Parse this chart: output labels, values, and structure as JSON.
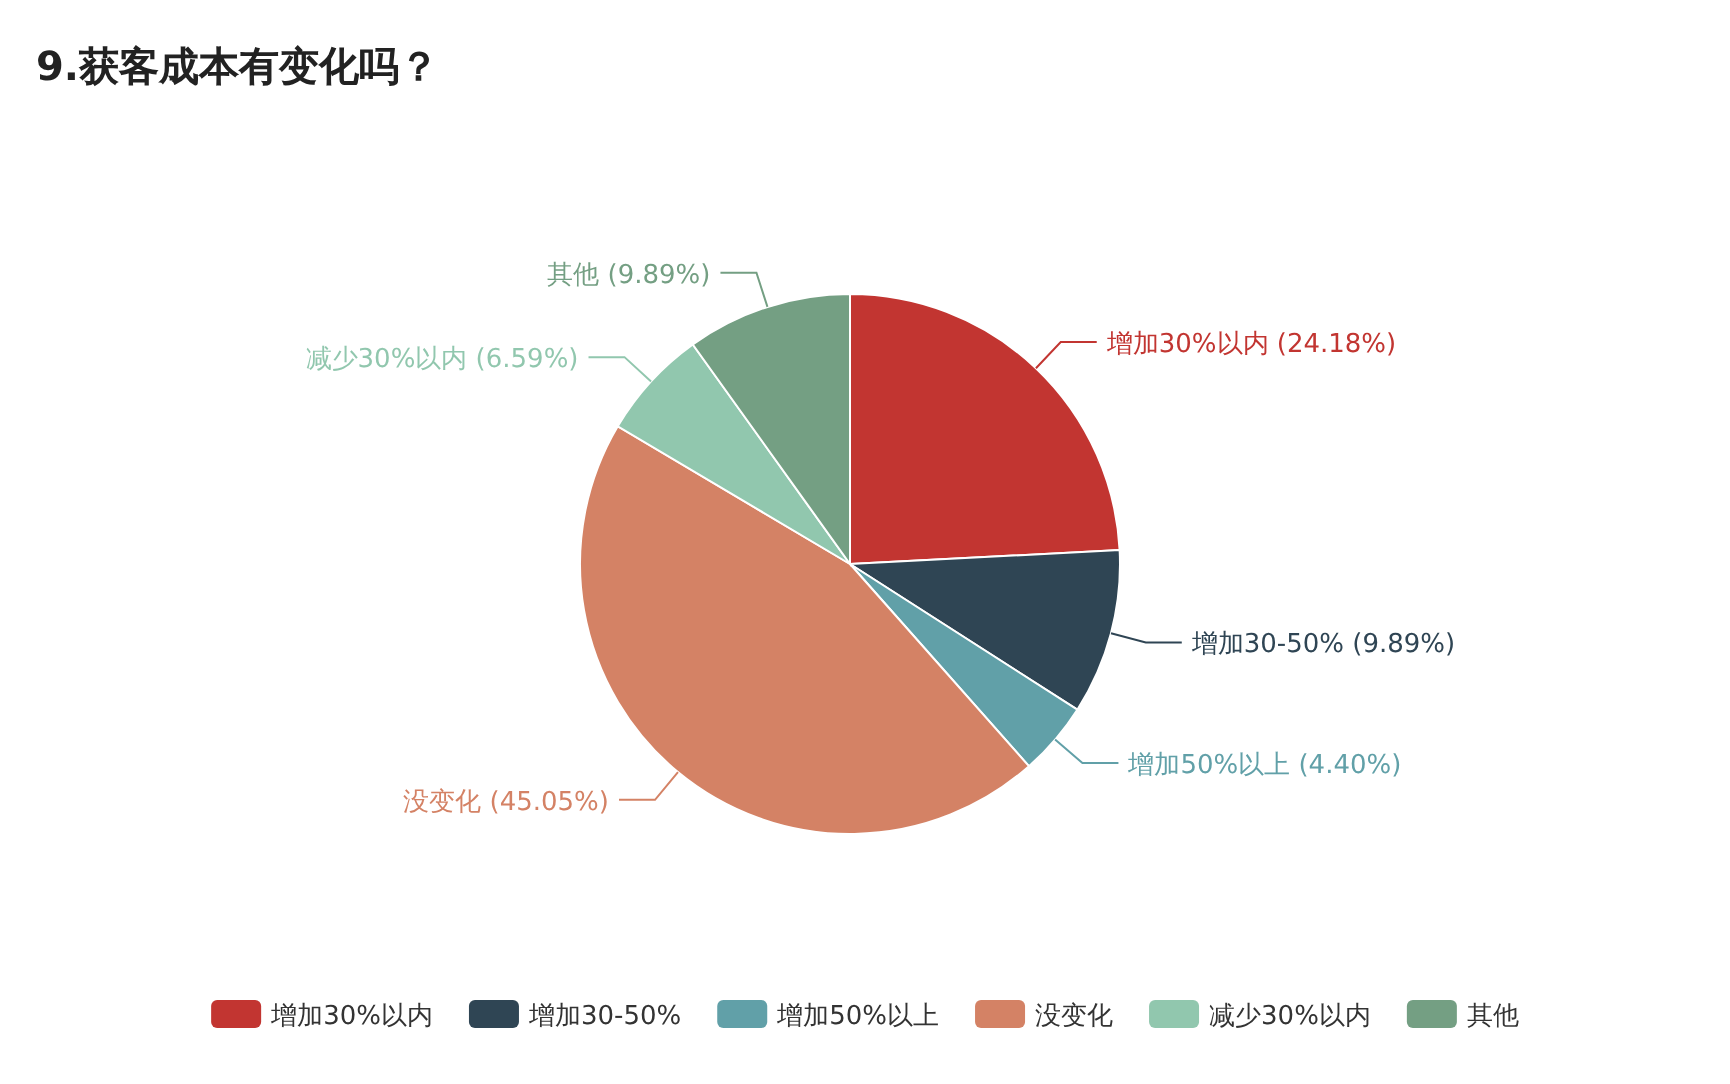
{
  "chart_data": {
    "type": "pie",
    "title": "9.获客成本有变化吗？",
    "categories": [
      "增加30%以内",
      "增加30-50%",
      "增加50%以上",
      "没变化",
      "减少30%以内",
      "其他"
    ],
    "values": [
      24.18,
      9.89,
      4.4,
      45.05,
      6.59,
      9.89
    ],
    "value_labels": [
      "(24.18%)",
      "(9.89%)",
      "(4.40%)",
      "(45.05%)",
      "(6.59%)",
      "(9.89%)"
    ],
    "colors": [
      "#c23531",
      "#2f4554",
      "#61a0a8",
      "#d48265",
      "#91c7ae",
      "#749f83"
    ],
    "legend": "bottom"
  }
}
